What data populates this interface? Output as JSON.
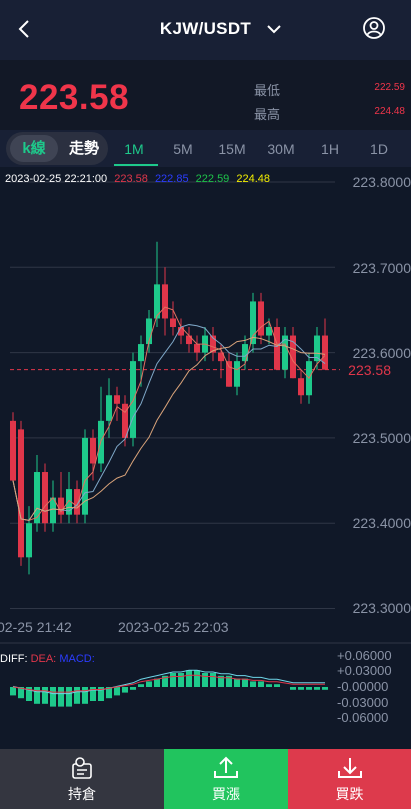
{
  "header": {
    "title": "KJW/USDT"
  },
  "price": {
    "current": "223.58",
    "low_label": "最低",
    "low_value": "222.59",
    "high_label": "最高",
    "high_value": "224.48"
  },
  "view_toggle": {
    "kline": "k線",
    "trend": "走勢"
  },
  "tabs": [
    "1M",
    "5M",
    "15M",
    "30M",
    "1H",
    "1D"
  ],
  "ohlc_bar": {
    "datetime": "2023-02-25 22:21:00",
    "v1": "223.58",
    "v2": "222.85",
    "v3": "222.59",
    "v4": "224.48"
  },
  "chart_axis": {
    "y_labels": [
      "223.8000",
      "223.7000",
      "223.6000",
      "223.5000",
      "223.4000",
      "223.3000"
    ],
    "current_price_tag": "223.58",
    "x_labels": [
      "02-25 21:42",
      "2023-02-25 22:03"
    ]
  },
  "macd": {
    "legend": {
      "diff": "DIFF:",
      "dea": "DEA:",
      "macd": "MACD:"
    },
    "y_labels": [
      "+0.06000",
      "+0.03000",
      "-0.00000",
      "-0.03000",
      "-0.06000"
    ]
  },
  "colors": {
    "up": "#1ec98b",
    "down": "#e0364a",
    "bg": "#121826"
  },
  "bottom_nav": {
    "hold": "持倉",
    "buy_up": "買漲",
    "buy_down": "買跌"
  }
}
